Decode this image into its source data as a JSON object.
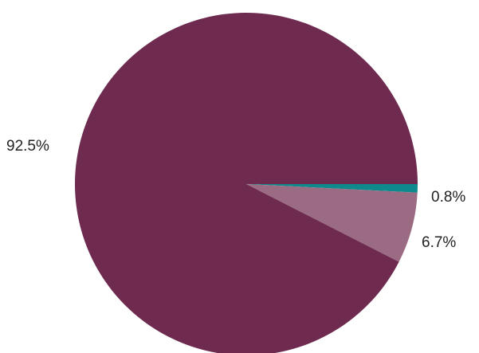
{
  "chart_data": {
    "type": "pie",
    "title": "",
    "slices": [
      {
        "label": "0.8%",
        "value": 0.8,
        "color": "#0f8a8c"
      },
      {
        "label": "6.7%",
        "value": 6.7,
        "color": "#9b6b84"
      },
      {
        "label": "92.5%",
        "value": 92.5,
        "color": "#6e2a4f"
      }
    ],
    "start_angle_deg": 0,
    "direction": "clockwise",
    "legend": "none",
    "label_position": "outside"
  }
}
